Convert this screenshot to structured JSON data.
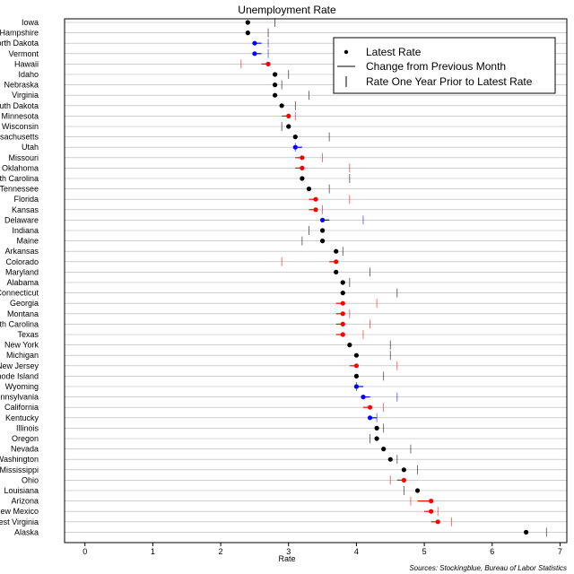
{
  "chart_data": {
    "type": "scatter",
    "title": "Unemployment Rate",
    "xlabel": "Rate",
    "ylabel": "",
    "xlim": [
      -0.3,
      7.1
    ],
    "xticks": [
      0,
      1,
      2,
      3,
      4,
      5,
      6,
      7
    ],
    "grid": "horizontal",
    "legend_position": "top-right",
    "legend": [
      {
        "symbol": "dot",
        "label": "Latest Rate"
      },
      {
        "symbol": "line",
        "label": "Change from Previous Month"
      },
      {
        "symbol": "tick",
        "label": "Rate One Year Prior to Latest Rate"
      }
    ],
    "source": "Sources: Stockingblue, Bureau of Labor Statistics",
    "colors": {
      "unchanged": "#000000",
      "increased": "#ff0000",
      "decreased": "#0000ff",
      "grid": "#b0b0b0"
    },
    "states": [
      {
        "name": "Iowa",
        "latest": 2.4,
        "previous": 2.4,
        "year_prior": 2.8,
        "status": "unchanged"
      },
      {
        "name": "New Hampshire",
        "latest": 2.4,
        "previous": 2.4,
        "year_prior": 2.7,
        "status": "unchanged"
      },
      {
        "name": "North Dakota",
        "latest": 2.5,
        "previous": 2.6,
        "year_prior": 2.7,
        "status": "decreased"
      },
      {
        "name": "Vermont",
        "latest": 2.5,
        "previous": 2.6,
        "year_prior": 2.7,
        "status": "decreased"
      },
      {
        "name": "Hawaii",
        "latest": 2.7,
        "previous": 2.6,
        "year_prior": 2.3,
        "status": "increased"
      },
      {
        "name": "Idaho",
        "latest": 2.8,
        "previous": 2.8,
        "year_prior": 3.0,
        "status": "unchanged"
      },
      {
        "name": "Nebraska",
        "latest": 2.8,
        "previous": 2.8,
        "year_prior": 2.9,
        "status": "unchanged"
      },
      {
        "name": "Virginia",
        "latest": 2.8,
        "previous": 2.8,
        "year_prior": 3.3,
        "status": "unchanged"
      },
      {
        "name": "South Dakota",
        "latest": 2.9,
        "previous": 2.9,
        "year_prior": 3.1,
        "status": "unchanged"
      },
      {
        "name": "Minnesota",
        "latest": 3.0,
        "previous": 2.9,
        "year_prior": 3.1,
        "status": "increased"
      },
      {
        "name": "Wisconsin",
        "latest": 3.0,
        "previous": 3.0,
        "year_prior": 2.9,
        "status": "unchanged"
      },
      {
        "name": "Massachusetts",
        "latest": 3.1,
        "previous": 3.1,
        "year_prior": 3.6,
        "status": "unchanged"
      },
      {
        "name": "Utah",
        "latest": 3.1,
        "previous": 3.2,
        "year_prior": 3.1,
        "status": "decreased"
      },
      {
        "name": "Missouri",
        "latest": 3.2,
        "previous": 3.1,
        "year_prior": 3.5,
        "status": "increased"
      },
      {
        "name": "Oklahoma",
        "latest": 3.2,
        "previous": 3.1,
        "year_prior": 3.9,
        "status": "increased"
      },
      {
        "name": "South Carolina",
        "latest": 3.2,
        "previous": 3.2,
        "year_prior": 3.9,
        "status": "unchanged"
      },
      {
        "name": "Tennessee",
        "latest": 3.3,
        "previous": 3.3,
        "year_prior": 3.6,
        "status": "unchanged"
      },
      {
        "name": "Florida",
        "latest": 3.4,
        "previous": 3.3,
        "year_prior": 3.9,
        "status": "increased"
      },
      {
        "name": "Kansas",
        "latest": 3.4,
        "previous": 3.3,
        "year_prior": 3.5,
        "status": "increased"
      },
      {
        "name": "Delaware",
        "latest": 3.5,
        "previous": 3.6,
        "year_prior": 4.1,
        "status": "decreased"
      },
      {
        "name": "Indiana",
        "latest": 3.5,
        "previous": 3.5,
        "year_prior": 3.3,
        "status": "unchanged"
      },
      {
        "name": "Maine",
        "latest": 3.5,
        "previous": 3.5,
        "year_prior": 3.2,
        "status": "unchanged"
      },
      {
        "name": "Arkansas",
        "latest": 3.7,
        "previous": 3.7,
        "year_prior": 3.8,
        "status": "unchanged"
      },
      {
        "name": "Colorado",
        "latest": 3.7,
        "previous": 3.6,
        "year_prior": 2.9,
        "status": "increased"
      },
      {
        "name": "Maryland",
        "latest": 3.7,
        "previous": 3.7,
        "year_prior": 4.2,
        "status": "unchanged"
      },
      {
        "name": "Alabama",
        "latest": 3.8,
        "previous": 3.8,
        "year_prior": 3.9,
        "status": "unchanged"
      },
      {
        "name": "Connecticut",
        "latest": 3.8,
        "previous": 3.8,
        "year_prior": 4.6,
        "status": "unchanged"
      },
      {
        "name": "Georgia",
        "latest": 3.8,
        "previous": 3.7,
        "year_prior": 4.3,
        "status": "increased"
      },
      {
        "name": "Montana",
        "latest": 3.8,
        "previous": 3.7,
        "year_prior": 3.9,
        "status": "increased"
      },
      {
        "name": "North Carolina",
        "latest": 3.8,
        "previous": 3.7,
        "year_prior": 4.2,
        "status": "increased"
      },
      {
        "name": "Texas",
        "latest": 3.8,
        "previous": 3.7,
        "year_prior": 4.1,
        "status": "increased"
      },
      {
        "name": "New York",
        "latest": 3.9,
        "previous": 3.9,
        "year_prior": 4.5,
        "status": "unchanged"
      },
      {
        "name": "Michigan",
        "latest": 4.0,
        "previous": 4.0,
        "year_prior": 4.5,
        "status": "unchanged"
      },
      {
        "name": "New Jersey",
        "latest": 4.0,
        "previous": 3.9,
        "year_prior": 4.6,
        "status": "increased"
      },
      {
        "name": "Rhode Island",
        "latest": 4.0,
        "previous": 4.0,
        "year_prior": 4.4,
        "status": "unchanged"
      },
      {
        "name": "Wyoming",
        "latest": 4.0,
        "previous": 4.1,
        "year_prior": 4.0,
        "status": "decreased"
      },
      {
        "name": "Pennsylvania",
        "latest": 4.1,
        "previous": 4.2,
        "year_prior": 4.6,
        "status": "decreased"
      },
      {
        "name": "California",
        "latest": 4.2,
        "previous": 4.1,
        "year_prior": 4.4,
        "status": "increased"
      },
      {
        "name": "Kentucky",
        "latest": 4.2,
        "previous": 4.3,
        "year_prior": 4.3,
        "status": "decreased"
      },
      {
        "name": "Illinois",
        "latest": 4.3,
        "previous": 4.3,
        "year_prior": 4.4,
        "status": "unchanged"
      },
      {
        "name": "Oregon",
        "latest": 4.3,
        "previous": 4.3,
        "year_prior": 4.2,
        "status": "unchanged"
      },
      {
        "name": "Nevada",
        "latest": 4.4,
        "previous": 4.4,
        "year_prior": 4.8,
        "status": "unchanged"
      },
      {
        "name": "Washington",
        "latest": 4.5,
        "previous": 4.5,
        "year_prior": 4.6,
        "status": "unchanged"
      },
      {
        "name": "Mississippi",
        "latest": 4.7,
        "previous": 4.7,
        "year_prior": 4.9,
        "status": "unchanged"
      },
      {
        "name": "Ohio",
        "latest": 4.7,
        "previous": 4.6,
        "year_prior": 4.5,
        "status": "increased"
      },
      {
        "name": "Louisiana",
        "latest": 4.9,
        "previous": 4.9,
        "year_prior": 4.7,
        "status": "unchanged"
      },
      {
        "name": "Arizona",
        "latest": 5.1,
        "previous": 4.9,
        "year_prior": 4.8,
        "status": "increased"
      },
      {
        "name": "New Mexico",
        "latest": 5.1,
        "previous": 5.0,
        "year_prior": 5.2,
        "status": "increased"
      },
      {
        "name": "West Virginia",
        "latest": 5.2,
        "previous": 5.1,
        "year_prior": 5.4,
        "status": "increased"
      },
      {
        "name": "Alaska",
        "latest": 6.5,
        "previous": 6.5,
        "year_prior": 6.8,
        "status": "unchanged"
      }
    ]
  }
}
